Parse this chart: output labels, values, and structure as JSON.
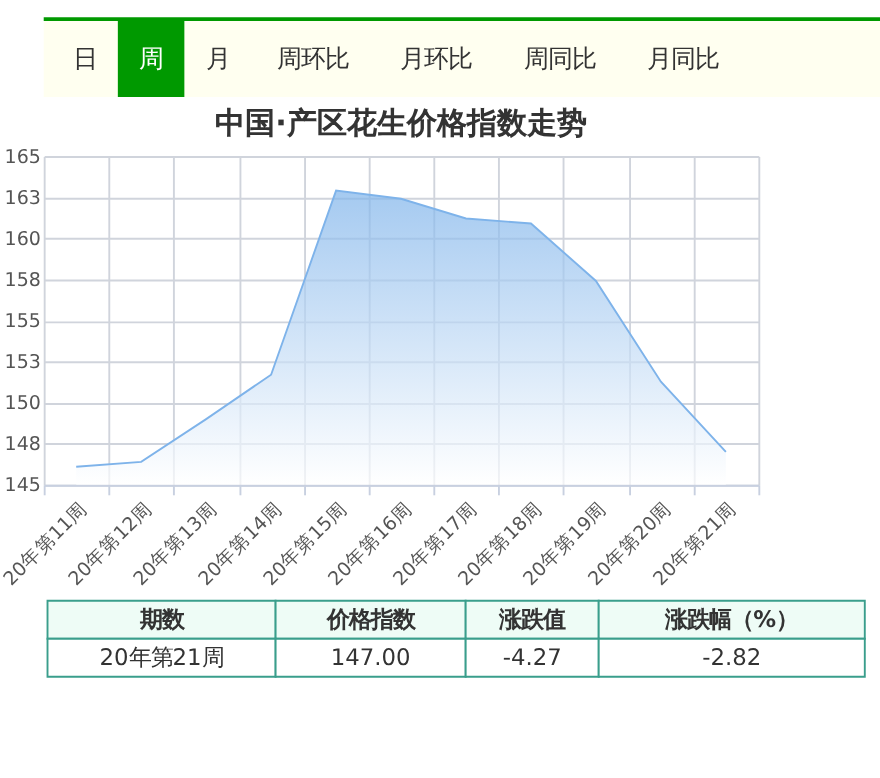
{
  "chart_data": {
    "type": "area",
    "title": "中国·产区花生价格指数走势",
    "categories": [
      "20年第11周",
      "20年第12周",
      "20年第13周",
      "20年第14周",
      "20年第15周",
      "20年第16周",
      "20年第17周",
      "20年第18周",
      "20年第19周",
      "20年第20周",
      "20年第21周"
    ],
    "series": [
      {
        "color": "#7eb3ea",
        "values": [
          146.1,
          146.4,
          149.0,
          151.7,
          162.9,
          162.4,
          161.2,
          160.9,
          157.4,
          151.27,
          147.0
        ]
      }
    ],
    "ylim": [
      145,
      165
    ],
    "yticks": [
      145,
      {
        "value": 147.5,
        "label": "148"
      },
      150,
      {
        "value": 152.5,
        "label": "153"
      },
      155,
      {
        "value": 157.5,
        "label": "158"
      },
      160,
      {
        "value": 162.5,
        "label": "163"
      },
      165
    ],
    "grid": true,
    "annotations": [
      "日",
      "周",
      "月",
      "周环比",
      "月环比",
      "周同比",
      "月同比",
      "期数",
      "价格指数",
      "涨跌值",
      "涨跌幅（%）",
      "20年第21周",
      "147.00",
      "-4.27",
      "-2.82"
    ]
  }
}
